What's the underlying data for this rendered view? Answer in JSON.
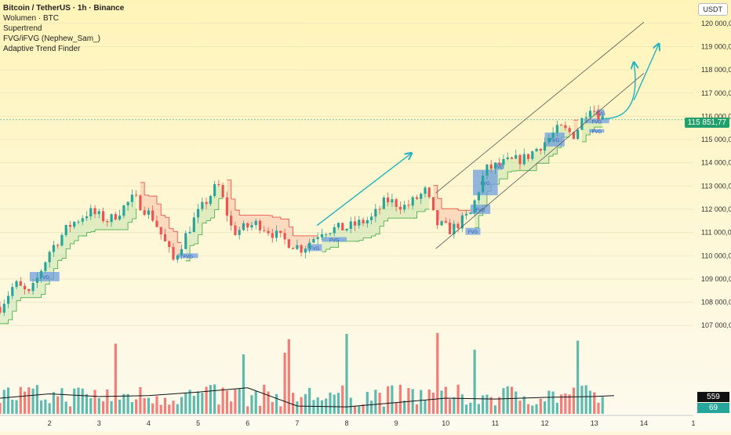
{
  "legend": {
    "title": "Bitcoin / TetherUS · 1h · Binance",
    "items": [
      "Wolumen · BTC",
      "Supertrend",
      "FVG/iFVG (Nephew_Sam_)",
      "Adaptive Trend Finder"
    ]
  },
  "currency_label": "USDT",
  "current_price_label": "115 851,77",
  "volume_badge": "559",
  "volume_badge_small": "69",
  "colors": {
    "up": "#26a69a",
    "down": "#ef5350",
    "supertrend_up": "#4caf50",
    "supertrend_down": "#ef5350",
    "fvg": "#6f9fe0",
    "arrow": "#20b2c2",
    "channel": "#555555",
    "volume_ma": "#111111",
    "price_badge": "#22a06b"
  },
  "chart_data": {
    "type": "candlestick",
    "ylim": [
      106500,
      120500
    ],
    "y_ticks": [
      107000,
      108000,
      109000,
      110000,
      111000,
      112000,
      113000,
      114000,
      115000,
      116000,
      117000,
      118000,
      119000,
      120000
    ],
    "y_tick_labels": [
      "107 000,00",
      "108 000,00",
      "109 000,00",
      "110 000,00",
      "111 000,00",
      "112 000,00",
      "113 000,00",
      "114 000,00",
      "115 000,00",
      "116 000,00",
      "117 000,00",
      "118 000,00",
      "119 000,00",
      "120 000,00"
    ],
    "x_ticks": [
      "2",
      "3",
      "4",
      "5",
      "6",
      "7",
      "8",
      "9",
      "10",
      "11",
      "12",
      "13",
      "14",
      "1"
    ],
    "current_price": 115851.77,
    "price_path": [
      {
        "day": 1.0,
        "price": 107800
      },
      {
        "day": 1.3,
        "price": 108800
      },
      {
        "day": 1.6,
        "price": 108300
      },
      {
        "day": 2.0,
        "price": 110200
      },
      {
        "day": 2.4,
        "price": 111300
      },
      {
        "day": 2.8,
        "price": 111900
      },
      {
        "day": 3.2,
        "price": 111500
      },
      {
        "day": 3.7,
        "price": 112500
      },
      {
        "day": 4.1,
        "price": 111600
      },
      {
        "day": 4.5,
        "price": 109800
      },
      {
        "day": 4.9,
        "price": 111500
      },
      {
        "day": 5.4,
        "price": 113100
      },
      {
        "day": 5.7,
        "price": 111000
      },
      {
        "day": 6.2,
        "price": 111400
      },
      {
        "day": 6.7,
        "price": 110700
      },
      {
        "day": 7.1,
        "price": 110300
      },
      {
        "day": 7.5,
        "price": 111100
      },
      {
        "day": 8.0,
        "price": 111200
      },
      {
        "day": 8.5,
        "price": 111600
      },
      {
        "day": 8.8,
        "price": 112400
      },
      {
        "day": 9.2,
        "price": 112100
      },
      {
        "day": 9.6,
        "price": 112800
      },
      {
        "day": 9.8,
        "price": 111400
      },
      {
        "day": 10.1,
        "price": 111100
      },
      {
        "day": 10.5,
        "price": 111800
      },
      {
        "day": 10.8,
        "price": 113700
      },
      {
        "day": 11.2,
        "price": 114000
      },
      {
        "day": 11.6,
        "price": 114200
      },
      {
        "day": 12.0,
        "price": 114900
      },
      {
        "day": 12.3,
        "price": 115500
      },
      {
        "day": 12.6,
        "price": 115200
      },
      {
        "day": 12.9,
        "price": 116500
      },
      {
        "day": 13.2,
        "price": 115850
      }
    ],
    "volume_ylim": [
      0,
      1200
    ],
    "volume_ma": [
      {
        "day": 1.0,
        "value": 180
      },
      {
        "day": 2.0,
        "value": 230
      },
      {
        "day": 3.0,
        "value": 200
      },
      {
        "day": 4.0,
        "value": 210
      },
      {
        "day": 5.0,
        "value": 250
      },
      {
        "day": 6.0,
        "value": 300
      },
      {
        "day": 7.0,
        "value": 90
      },
      {
        "day": 8.0,
        "value": 80
      },
      {
        "day": 9.0,
        "value": 130
      },
      {
        "day": 10.0,
        "value": 180
      },
      {
        "day": 11.0,
        "value": 170
      },
      {
        "day": 12.0,
        "value": 190
      },
      {
        "day": 13.0,
        "value": 200
      },
      {
        "day": 13.4,
        "value": 210
      }
    ],
    "channel": {
      "upper": [
        {
          "day": 9.8,
          "price": 112700
        },
        {
          "day": 14.0,
          "price": 120050
        }
      ],
      "lower": [
        {
          "day": 9.8,
          "price": 110300
        },
        {
          "day": 14.0,
          "price": 117850
        }
      ]
    },
    "fvg_zones": [
      {
        "day_start": 1.6,
        "day_end": 2.2,
        "low": 108900,
        "high": 109300,
        "label": "FVG"
      },
      {
        "day_start": 4.6,
        "day_end": 5.0,
        "low": 109900,
        "high": 110100,
        "label": "FVG"
      },
      {
        "day_start": 7.2,
        "day_end": 7.5,
        "low": 110200,
        "high": 110500,
        "label": "FVG"
      },
      {
        "day_start": 7.5,
        "day_end": 8.0,
        "low": 110600,
        "high": 110800,
        "label": "FVG"
      },
      {
        "day_start": 10.4,
        "day_end": 10.7,
        "low": 110900,
        "high": 111200,
        "label": "FVG"
      },
      {
        "day_start": 10.5,
        "day_end": 10.9,
        "low": 111800,
        "high": 112200,
        "label": "FVG"
      },
      {
        "day_start": 10.55,
        "day_end": 11.05,
        "low": 112600,
        "high": 113700,
        "label": "FVG"
      },
      {
        "day_start": 11.0,
        "day_end": 11.15,
        "low": 113700,
        "high": 114000,
        "label": "FVG"
      },
      {
        "day_start": 12.0,
        "day_end": 12.4,
        "low": 114700,
        "high": 115300,
        "label": "FVG"
      },
      {
        "day_start": 12.8,
        "day_end": 13.3,
        "low": 115700,
        "high": 115900,
        "label": "FVG"
      },
      {
        "day_start": 12.9,
        "day_end": 13.2,
        "low": 115300,
        "high": 115450,
        "label": "FVG"
      },
      {
        "day_start": 13.05,
        "day_end": 13.2,
        "low": 116000,
        "high": 116300,
        "label": "FVG"
      }
    ],
    "arrows": [
      {
        "from": {
          "day": 7.4,
          "price": 111300
        },
        "to": {
          "day": 9.3,
          "price": 114400
        }
      },
      {
        "from": {
          "day": 13.2,
          "price": 115900
        },
        "to": {
          "day": 13.8,
          "price": 118300
        },
        "curved": true
      },
      {
        "from": {
          "day": 13.8,
          "price": 116700
        },
        "to": {
          "day": 14.3,
          "price": 119100
        }
      }
    ]
  }
}
